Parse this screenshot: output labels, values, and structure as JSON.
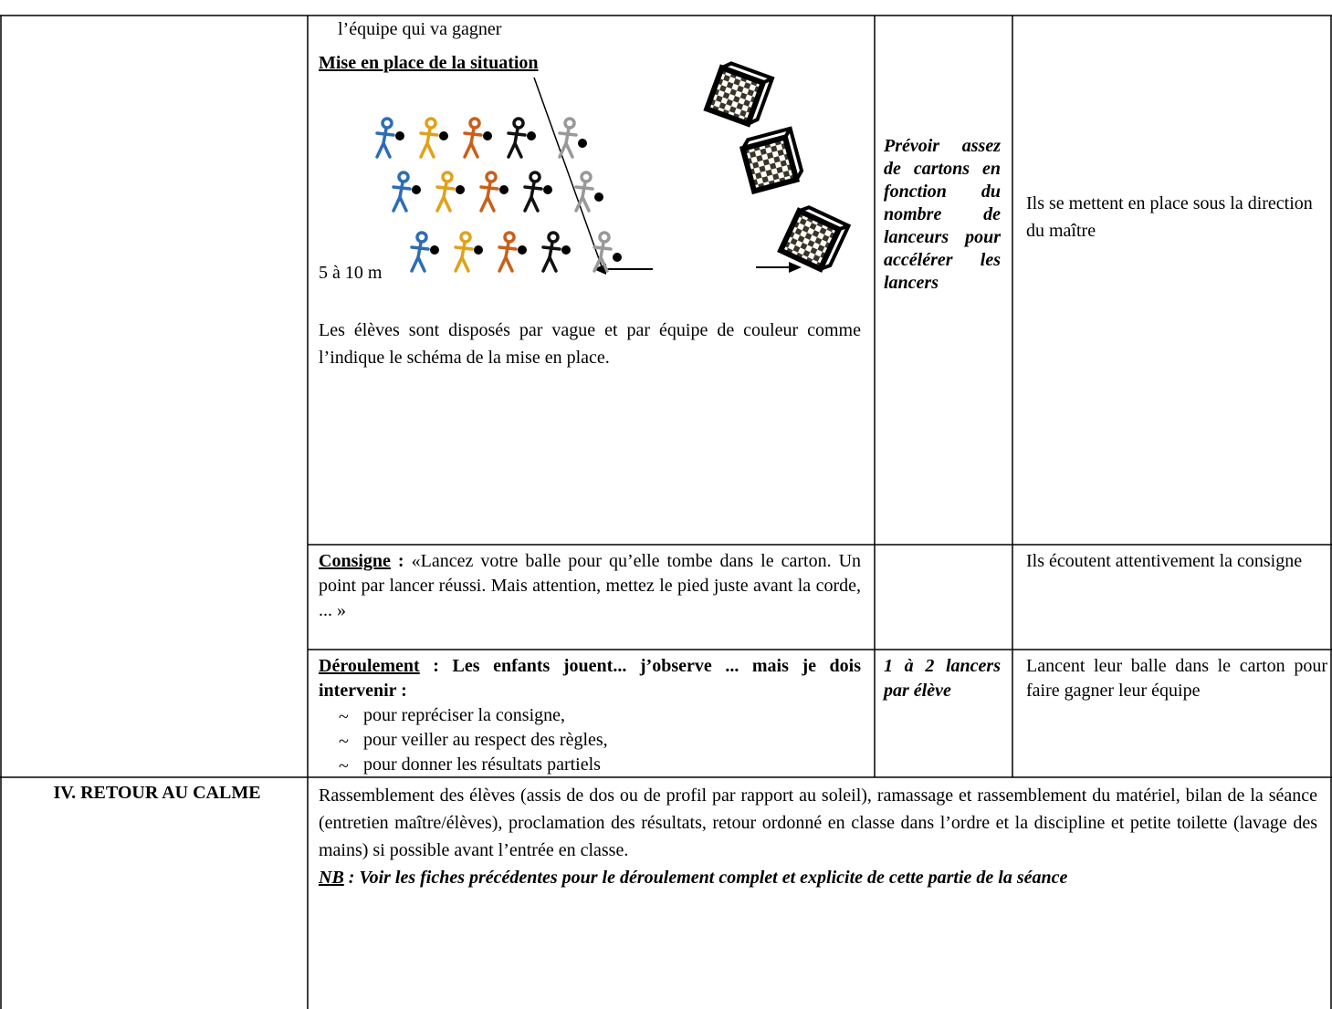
{
  "table": {
    "rows": [
      {
        "activity": {
          "intro": "l’équipe qui va gagner",
          "heading": "Mise en place de la situation",
          "diagram_label": "5 à 10 m",
          "text": "Les élèves sont disposés par vague et par équipe de couleur comme l’indique le schéma de la mise en place."
        },
        "material": "Prévoir assez de cartons en fonction du nombre de lanceurs pour accélérer les lancers",
        "pupils": "Ils se mettent en place sous la direction du maître"
      },
      {
        "activity": {
          "heading": "Consigne",
          "heading_suffix": ":",
          "text": "«Lancez votre balle pour qu’elle tombe dans le carton. Un point par lancer réussi. Mais attention, mettez le pied juste avant la corde, ... »"
        },
        "pupils": "Ils écoutent attentivement la consigne"
      },
      {
        "activity": {
          "heading": "Déroulement",
          "text": ": Les enfants jouent... j’observe ... mais je dois intervenir :",
          "items": [
            "pour repréciser la consigne,",
            "pour veiller au respect des règles,",
            "pour donner les résultats partiels"
          ]
        },
        "material": "1 à 2 lancers par élève",
        "pupils": "Lancent leur balle dans le carton pour faire gagner leur équipe"
      },
      {
        "phase": "IV. RETOUR AU CALME",
        "text": "Rassemblement des élèves (assis de dos ou de profil par rapport au soleil), ramassage et rassemblement du matériel, bilan de la séance (entretien maître/élèves), proclamation des résultats, retour ordonné en classe dans l’ordre et la discipline et petite toilette (lavage des mains) si possible avant l’entrée en classe.",
        "note": {
          "label": "NB",
          "text": ": Voir les fiches précédentes pour le déroulement complet et explicite de cette partie de la séance"
        }
      }
    ]
  }
}
